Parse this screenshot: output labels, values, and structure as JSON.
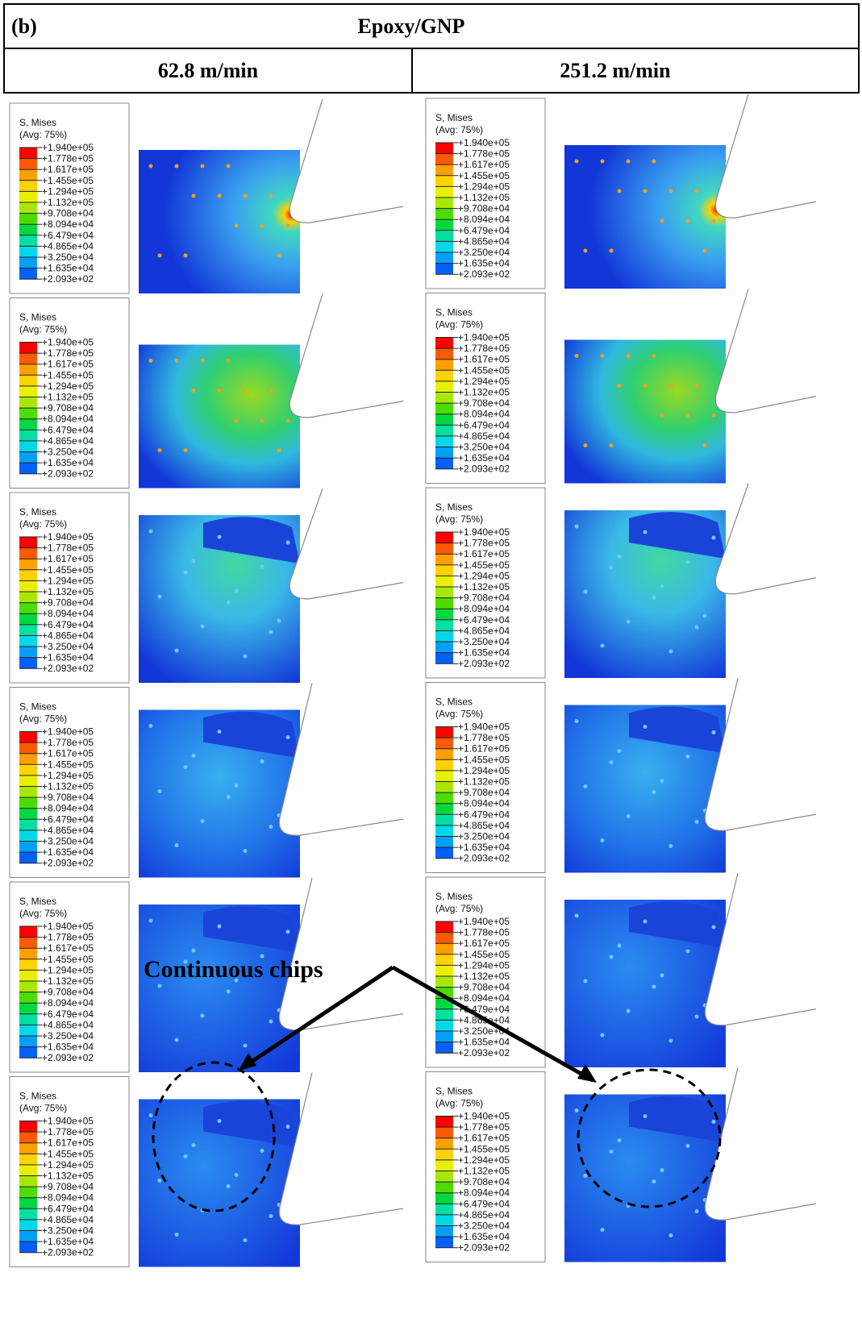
{
  "header": {
    "label": "(b)",
    "title": "Epoxy/GNP"
  },
  "columns": [
    "62.8 m/min",
    "251.2 m/min"
  ],
  "legend": {
    "title": "S, Mises",
    "subtitle": "(Avg: 75%)",
    "levels": [
      "+1.940e+05",
      "+1.778e+05",
      "+1.617e+05",
      "+1.455e+05",
      "+1.294e+05",
      "+1.132e+05",
      "+9.708e+04",
      "+8.094e+04",
      "+6.479e+04",
      "+4.865e+04",
      "+3.250e+04",
      "+1.635e+04",
      "+2.093e+02"
    ]
  },
  "annotation": "Continuous chips"
}
